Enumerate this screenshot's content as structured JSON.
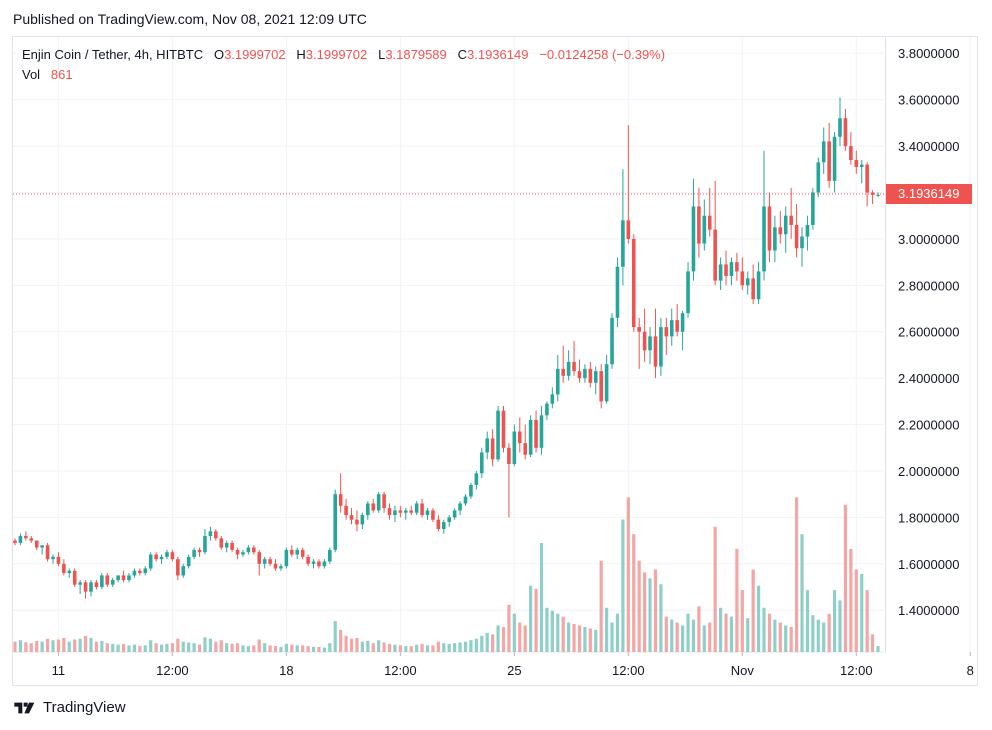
{
  "header": {
    "published": "Published on TradingView.com, Nov 08, 2021 12:09 UTC"
  },
  "legend": {
    "symbol": "Enjin Coin / Tether, 4h, HITBTC",
    "o_label": "O",
    "o_value": "3.1999702",
    "h_label": "H",
    "h_value": "3.1999702",
    "l_label": "L",
    "l_value": "3.1879589",
    "c_label": "C",
    "c_value": "3.1936149",
    "change": "−0.0124258 (−0.39%)",
    "vol_label": "Vol",
    "vol_value": "861"
  },
  "current_price_label": "3.1936149",
  "footer": {
    "brand": "TradingView",
    "logo_icon": "tradingview-logo-icon"
  },
  "colors": {
    "up": "#26a69a",
    "down": "#ef5350",
    "up_volume": "#8fcfc9",
    "down_volume": "#f3a6a4",
    "grid": "#f0f3fa",
    "axis_text": "#131722"
  },
  "chart_data": {
    "type": "candlestick",
    "title": "Enjin Coin / Tether, 4h, HITBTC",
    "ylim": [
      1.22,
      3.87
    ],
    "y_ticks": [
      "1.4000000",
      "1.6000000",
      "1.8000000",
      "2.0000000",
      "2.2000000",
      "2.4000000",
      "2.6000000",
      "2.8000000",
      "3.0000000",
      "3.2000000",
      "3.4000000",
      "3.6000000",
      "3.8000000"
    ],
    "x_ticks": [
      {
        "label": "11",
        "index": 8
      },
      {
        "label": "12:00",
        "index": 29
      },
      {
        "label": "18",
        "index": 50
      },
      {
        "label": "12:00",
        "index": 71
      },
      {
        "label": "25",
        "index": 92
      },
      {
        "label": "12:00",
        "index": 113
      },
      {
        "label": "Nov",
        "index": 134
      },
      {
        "label": "12:00",
        "index": 155
      },
      {
        "label": "8",
        "index": 176
      }
    ],
    "grid": true,
    "current_price": 3.1936149,
    "candles": [
      [
        1.7,
        1.71,
        1.68,
        1.69,
        70
      ],
      [
        1.69,
        1.73,
        1.68,
        1.72,
        80
      ],
      [
        1.72,
        1.74,
        1.7,
        1.71,
        65
      ],
      [
        1.71,
        1.72,
        1.69,
        1.7,
        60
      ],
      [
        1.7,
        1.7,
        1.66,
        1.67,
        75
      ],
      [
        1.67,
        1.68,
        1.64,
        1.68,
        70
      ],
      [
        1.68,
        1.69,
        1.61,
        1.62,
        90
      ],
      [
        1.62,
        1.64,
        1.6,
        1.63,
        80
      ],
      [
        1.63,
        1.65,
        1.59,
        1.6,
        85
      ],
      [
        1.6,
        1.62,
        1.55,
        1.56,
        95
      ],
      [
        1.56,
        1.58,
        1.54,
        1.57,
        70
      ],
      [
        1.57,
        1.58,
        1.5,
        1.51,
        85
      ],
      [
        1.51,
        1.53,
        1.47,
        1.52,
        90
      ],
      [
        1.52,
        1.53,
        1.45,
        1.48,
        110
      ],
      [
        1.48,
        1.53,
        1.46,
        1.52,
        95
      ],
      [
        1.52,
        1.53,
        1.49,
        1.5,
        70
      ],
      [
        1.5,
        1.56,
        1.49,
        1.55,
        75
      ],
      [
        1.55,
        1.56,
        1.5,
        1.51,
        60
      ],
      [
        1.51,
        1.54,
        1.5,
        1.53,
        55
      ],
      [
        1.53,
        1.55,
        1.52,
        1.55,
        50
      ],
      [
        1.55,
        1.57,
        1.52,
        1.53,
        55
      ],
      [
        1.53,
        1.56,
        1.52,
        1.55,
        45
      ],
      [
        1.55,
        1.58,
        1.54,
        1.57,
        50
      ],
      [
        1.57,
        1.58,
        1.55,
        1.56,
        40
      ],
      [
        1.56,
        1.59,
        1.55,
        1.58,
        45
      ],
      [
        1.58,
        1.65,
        1.57,
        1.64,
        80
      ],
      [
        1.64,
        1.65,
        1.61,
        1.62,
        60
      ],
      [
        1.62,
        1.64,
        1.6,
        1.63,
        50
      ],
      [
        1.63,
        1.66,
        1.62,
        1.65,
        55
      ],
      [
        1.65,
        1.66,
        1.61,
        1.62,
        60
      ],
      [
        1.62,
        1.63,
        1.53,
        1.55,
        90
      ],
      [
        1.55,
        1.6,
        1.54,
        1.59,
        70
      ],
      [
        1.59,
        1.64,
        1.58,
        1.63,
        65
      ],
      [
        1.63,
        1.67,
        1.62,
        1.66,
        60
      ],
      [
        1.66,
        1.67,
        1.63,
        1.65,
        50
      ],
      [
        1.65,
        1.75,
        1.64,
        1.72,
        100
      ],
      [
        1.72,
        1.76,
        1.7,
        1.74,
        90
      ],
      [
        1.74,
        1.75,
        1.7,
        1.71,
        70
      ],
      [
        1.71,
        1.72,
        1.66,
        1.67,
        80
      ],
      [
        1.67,
        1.7,
        1.65,
        1.69,
        60
      ],
      [
        1.69,
        1.7,
        1.65,
        1.66,
        55
      ],
      [
        1.66,
        1.67,
        1.62,
        1.64,
        60
      ],
      [
        1.64,
        1.66,
        1.63,
        1.65,
        45
      ],
      [
        1.65,
        1.68,
        1.64,
        1.67,
        40
      ],
      [
        1.67,
        1.68,
        1.64,
        1.65,
        45
      ],
      [
        1.65,
        1.66,
        1.55,
        1.6,
        85
      ],
      [
        1.6,
        1.63,
        1.58,
        1.62,
        60
      ],
      [
        1.62,
        1.63,
        1.59,
        1.6,
        45
      ],
      [
        1.6,
        1.62,
        1.57,
        1.58,
        40
      ],
      [
        1.58,
        1.6,
        1.57,
        1.59,
        35
      ],
      [
        1.59,
        1.67,
        1.58,
        1.66,
        55
      ],
      [
        1.66,
        1.68,
        1.63,
        1.64,
        50
      ],
      [
        1.64,
        1.67,
        1.62,
        1.66,
        45
      ],
      [
        1.66,
        1.67,
        1.62,
        1.63,
        45
      ],
      [
        1.63,
        1.64,
        1.59,
        1.6,
        40
      ],
      [
        1.6,
        1.62,
        1.58,
        1.61,
        35
      ],
      [
        1.61,
        1.62,
        1.58,
        1.59,
        35
      ],
      [
        1.59,
        1.62,
        1.58,
        1.61,
        30
      ],
      [
        1.61,
        1.67,
        1.6,
        1.66,
        60
      ],
      [
        1.66,
        1.92,
        1.65,
        1.9,
        210
      ],
      [
        1.9,
        1.99,
        1.82,
        1.85,
        150
      ],
      [
        1.85,
        1.88,
        1.79,
        1.81,
        110
      ],
      [
        1.81,
        1.84,
        1.77,
        1.79,
        90
      ],
      [
        1.79,
        1.83,
        1.74,
        1.77,
        95
      ],
      [
        1.77,
        1.82,
        1.75,
        1.81,
        70
      ],
      [
        1.81,
        1.87,
        1.79,
        1.86,
        75
      ],
      [
        1.86,
        1.88,
        1.82,
        1.83,
        60
      ],
      [
        1.83,
        1.91,
        1.82,
        1.9,
        80
      ],
      [
        1.9,
        1.91,
        1.82,
        1.84,
        65
      ],
      [
        1.84,
        1.86,
        1.79,
        1.81,
        55
      ],
      [
        1.81,
        1.85,
        1.78,
        1.83,
        50
      ],
      [
        1.83,
        1.85,
        1.8,
        1.82,
        45
      ],
      [
        1.82,
        1.84,
        1.79,
        1.83,
        40
      ],
      [
        1.83,
        1.85,
        1.81,
        1.82,
        40
      ],
      [
        1.82,
        1.87,
        1.81,
        1.86,
        50
      ],
      [
        1.86,
        1.88,
        1.8,
        1.81,
        55
      ],
      [
        1.81,
        1.84,
        1.79,
        1.83,
        45
      ],
      [
        1.83,
        1.84,
        1.78,
        1.79,
        45
      ],
      [
        1.79,
        1.81,
        1.74,
        1.75,
        70
      ],
      [
        1.75,
        1.79,
        1.73,
        1.78,
        60
      ],
      [
        1.78,
        1.81,
        1.76,
        1.8,
        55
      ],
      [
        1.8,
        1.84,
        1.79,
        1.83,
        60
      ],
      [
        1.83,
        1.87,
        1.81,
        1.86,
        65
      ],
      [
        1.86,
        1.9,
        1.85,
        1.89,
        70
      ],
      [
        1.89,
        1.95,
        1.88,
        1.94,
        80
      ],
      [
        1.94,
        2.0,
        1.92,
        1.99,
        90
      ],
      [
        1.99,
        2.1,
        1.97,
        2.08,
        110
      ],
      [
        2.08,
        2.17,
        2.05,
        2.14,
        130
      ],
      [
        2.14,
        2.18,
        2.02,
        2.05,
        120
      ],
      [
        2.05,
        2.28,
        2.04,
        2.26,
        180
      ],
      [
        2.26,
        2.28,
        2.08,
        2.1,
        170
      ],
      [
        2.1,
        2.12,
        1.8,
        2.03,
        320
      ],
      [
        2.03,
        2.2,
        2.02,
        2.17,
        260
      ],
      [
        2.17,
        2.23,
        2.08,
        2.12,
        200
      ],
      [
        2.12,
        2.2,
        2.05,
        2.07,
        180
      ],
      [
        2.07,
        2.24,
        2.06,
        2.22,
        450
      ],
      [
        2.22,
        2.26,
        2.08,
        2.1,
        430
      ],
      [
        2.1,
        2.28,
        2.07,
        2.24,
        740
      ],
      [
        2.24,
        2.3,
        2.22,
        2.29,
        300
      ],
      [
        2.29,
        2.36,
        2.27,
        2.33,
        280
      ],
      [
        2.33,
        2.5,
        2.3,
        2.44,
        260
      ],
      [
        2.44,
        2.54,
        2.38,
        2.41,
        240
      ],
      [
        2.41,
        2.52,
        2.39,
        2.47,
        200
      ],
      [
        2.47,
        2.56,
        2.41,
        2.43,
        190
      ],
      [
        2.43,
        2.48,
        2.38,
        2.4,
        180
      ],
      [
        2.4,
        2.46,
        2.38,
        2.44,
        170
      ],
      [
        2.44,
        2.47,
        2.36,
        2.38,
        160
      ],
      [
        2.38,
        2.45,
        2.33,
        2.43,
        150
      ],
      [
        2.43,
        2.46,
        2.27,
        2.3,
        620
      ],
      [
        2.3,
        2.5,
        2.29,
        2.46,
        300
      ],
      [
        2.46,
        2.68,
        2.44,
        2.66,
        200
      ],
      [
        2.66,
        2.92,
        2.62,
        2.88,
        260
      ],
      [
        2.88,
        3.3,
        2.8,
        3.08,
        900
      ],
      [
        3.08,
        3.49,
        2.98,
        3.0,
        1050
      ],
      [
        3.0,
        3.02,
        2.6,
        2.62,
        800
      ],
      [
        2.62,
        2.66,
        2.44,
        2.6,
        620
      ],
      [
        2.6,
        2.7,
        2.47,
        2.52,
        540
      ],
      [
        2.52,
        2.62,
        2.46,
        2.58,
        500
      ],
      [
        2.58,
        2.7,
        2.4,
        2.45,
        560
      ],
      [
        2.45,
        2.66,
        2.41,
        2.62,
        460
      ],
      [
        2.62,
        2.66,
        2.5,
        2.58,
        240
      ],
      [
        2.58,
        2.7,
        2.54,
        2.65,
        220
      ],
      [
        2.65,
        2.72,
        2.58,
        2.6,
        200
      ],
      [
        2.6,
        2.69,
        2.52,
        2.68,
        180
      ],
      [
        2.68,
        2.9,
        2.66,
        2.86,
        260
      ],
      [
        2.86,
        3.26,
        2.82,
        3.14,
        220
      ],
      [
        3.14,
        3.22,
        2.92,
        2.98,
        310
      ],
      [
        2.98,
        3.17,
        2.95,
        3.1,
        180
      ],
      [
        3.1,
        3.22,
        3.01,
        3.04,
        200
      ],
      [
        3.04,
        3.25,
        2.8,
        2.82,
        850
      ],
      [
        2.82,
        2.92,
        2.78,
        2.89,
        300
      ],
      [
        2.89,
        2.95,
        2.8,
        2.84,
        260
      ],
      [
        2.84,
        2.92,
        2.8,
        2.9,
        240
      ],
      [
        2.9,
        2.94,
        2.82,
        2.86,
        700
      ],
      [
        2.86,
        2.92,
        2.78,
        2.8,
        420
      ],
      [
        2.8,
        2.86,
        2.76,
        2.83,
        230
      ],
      [
        2.83,
        2.89,
        2.72,
        2.74,
        560
      ],
      [
        2.74,
        2.9,
        2.72,
        2.86,
        450
      ],
      [
        2.86,
        3.38,
        2.82,
        3.14,
        300
      ],
      [
        3.14,
        3.2,
        2.9,
        2.95,
        260
      ],
      [
        2.95,
        3.1,
        2.9,
        3.05,
        220
      ],
      [
        3.05,
        3.12,
        2.98,
        3.02,
        200
      ],
      [
        3.02,
        3.14,
        2.94,
        3.1,
        180
      ],
      [
        3.1,
        3.22,
        3.0,
        3.06,
        170
      ],
      [
        3.06,
        3.15,
        2.92,
        2.96,
        1050
      ],
      [
        2.96,
        3.05,
        2.88,
        3.01,
        800
      ],
      [
        3.01,
        3.1,
        2.95,
        3.06,
        420
      ],
      [
        3.06,
        3.22,
        3.04,
        3.2,
        250
      ],
      [
        3.2,
        3.35,
        3.18,
        3.33,
        220
      ],
      [
        3.33,
        3.48,
        3.28,
        3.42,
        200
      ],
      [
        3.42,
        3.5,
        3.22,
        3.25,
        260
      ],
      [
        3.25,
        3.46,
        3.2,
        3.44,
        420
      ],
      [
        3.44,
        3.61,
        3.4,
        3.52,
        350
      ],
      [
        3.52,
        3.56,
        3.38,
        3.4,
        1000
      ],
      [
        3.4,
        3.46,
        3.32,
        3.34,
        700
      ],
      [
        3.34,
        3.38,
        3.28,
        3.31,
        560
      ],
      [
        3.31,
        3.34,
        3.24,
        3.32,
        530
      ],
      [
        3.32,
        3.33,
        3.14,
        3.2,
        420
      ],
      [
        3.2,
        3.21,
        3.15,
        3.19,
        120
      ],
      [
        3.19,
        3.2,
        3.18,
        3.19,
        40
      ]
    ],
    "volume_max": 1100
  }
}
